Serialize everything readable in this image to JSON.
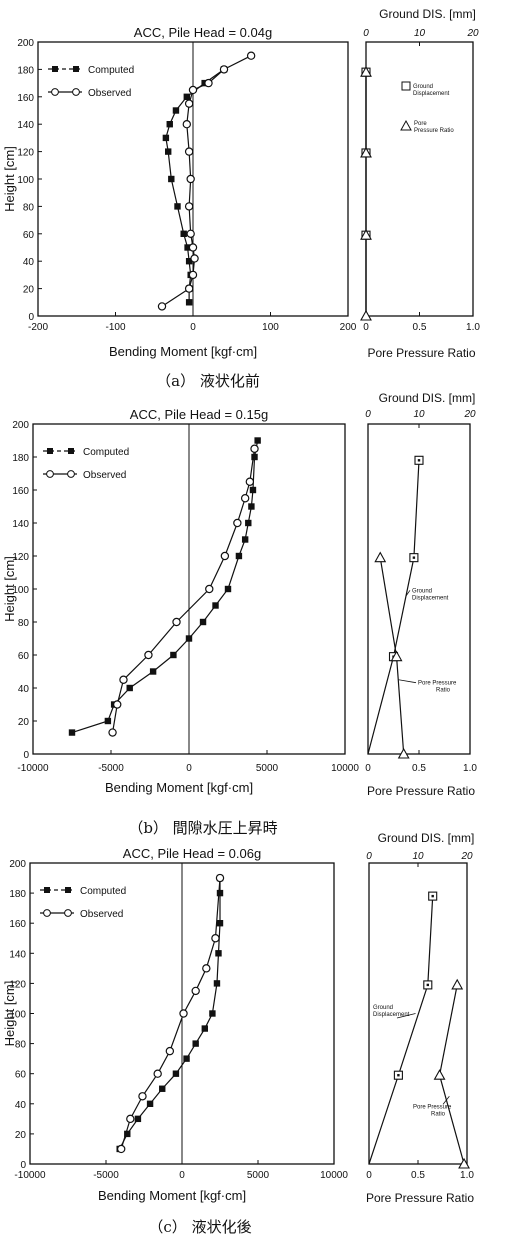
{
  "chart_data": [
    {
      "type": "line",
      "title": "ACC, Pile Head = 0.04g",
      "caption": "（a） 液状化前",
      "xlabel": "Bending Moment [kgf·cm]",
      "ylabel": "Height [cm]",
      "xlim": [
        -200,
        200
      ],
      "ylim": [
        0,
        200
      ],
      "xticks": [
        "-200",
        "-100",
        "0",
        "100",
        "200"
      ],
      "yticks": [
        "0",
        "20",
        "40",
        "60",
        "80",
        "100",
        "120",
        "140",
        "160",
        "180",
        "200"
      ],
      "legend": {
        "position": "top-left",
        "computed": "Computed",
        "observed": "Observed"
      },
      "series": [
        {
          "name": "Computed",
          "marker": "filled-square",
          "x": [
            -5,
            -5,
            -3,
            -5,
            -7,
            -12,
            -20,
            -28,
            -32,
            -35,
            -30,
            -22,
            -8,
            15,
            40
          ],
          "y": [
            10,
            20,
            30,
            40,
            50,
            60,
            80,
            100,
            120,
            130,
            140,
            150,
            160,
            170,
            180
          ]
        },
        {
          "name": "Observed",
          "marker": "open-circle",
          "x": [
            -40,
            -5,
            0,
            2,
            0,
            -3,
            -5,
            -3,
            -5,
            -8,
            -5,
            0,
            20,
            40,
            75
          ],
          "y": [
            7,
            20,
            30,
            42,
            50,
            60,
            80,
            100,
            120,
            140,
            155,
            165,
            170,
            180,
            190
          ]
        }
      ],
      "side_panel": {
        "top_label": "Ground DIS. [mm]",
        "bottom_label": "Pore Pressure Ratio",
        "top_ticks": [
          "0",
          "10",
          "20"
        ],
        "top_lim": [
          0,
          20
        ],
        "bottom_ticks": [
          "0",
          "0.5",
          "1.0"
        ],
        "bottom_lim": [
          0,
          1
        ],
        "label_ground": [
          "Ground",
          "Displacement"
        ],
        "label_pore": [
          "Pore",
          "Pressure Ratio"
        ],
        "ground_displacement": {
          "x": [
            0,
            0,
            0,
            0
          ],
          "y": [
            178,
            119,
            59,
            0
          ]
        },
        "pore_pressure": {
          "x": [
            0,
            0,
            0,
            0
          ],
          "y": [
            178,
            119,
            59,
            0
          ]
        }
      }
    },
    {
      "type": "line",
      "title": "ACC, Pile Head = 0.15g",
      "caption": "（b） 間隙水圧上昇時",
      "xlabel": "Bending Moment [kgf·cm]",
      "ylabel": "Height [cm]",
      "xlim": [
        -10000,
        10000
      ],
      "ylim": [
        0,
        200
      ],
      "xticks": [
        "-10000",
        "-5000",
        "0",
        "5000",
        "10000"
      ],
      "yticks": [
        "0",
        "20",
        "40",
        "60",
        "80",
        "100",
        "120",
        "140",
        "160",
        "180",
        "200"
      ],
      "legend": {
        "position": "top-left",
        "computed": "Computed",
        "observed": "Observed"
      },
      "series": [
        {
          "name": "Computed",
          "marker": "filled-square",
          "x": [
            -7500,
            -5200,
            -4800,
            -3800,
            -2300,
            -1000,
            0,
            900,
            1700,
            2500,
            3200,
            3600,
            3800,
            4000,
            4100,
            4200,
            4400
          ],
          "y": [
            13,
            20,
            30,
            40,
            50,
            60,
            70,
            80,
            90,
            100,
            120,
            130,
            140,
            150,
            160,
            180,
            190
          ]
        },
        {
          "name": "Observed",
          "marker": "open-circle",
          "x": [
            -4900,
            -4600,
            -4200,
            -2600,
            -800,
            1300,
            2300,
            3100,
            3600,
            3900,
            4200
          ],
          "y": [
            13,
            30,
            45,
            60,
            80,
            100,
            120,
            140,
            155,
            165,
            185
          ]
        }
      ],
      "side_panel": {
        "top_label": "Ground DIS. [mm]",
        "bottom_label": "Pore Pressure Ratio",
        "top_ticks": [
          "0",
          "10",
          "20"
        ],
        "top_lim": [
          0,
          20
        ],
        "bottom_ticks": [
          "0",
          "0.5",
          "1.0"
        ],
        "bottom_lim": [
          0,
          1
        ],
        "label_ground": [
          "Ground",
          "Displacement"
        ],
        "label_pore": [
          "Pore Pressure",
          "Ratio"
        ],
        "ground_displacement": {
          "x": [
            10,
            9,
            5,
            0
          ],
          "y": [
            178,
            119,
            59,
            0
          ]
        },
        "pore_pressure": {
          "x": [
            0.12,
            0.28,
            0.35
          ],
          "y": [
            119,
            59,
            0
          ]
        }
      }
    },
    {
      "type": "line",
      "title": "ACC, Pile Head = 0.06g",
      "caption": "（c） 液状化後",
      "xlabel": "Bending Moment [kgf·cm]",
      "ylabel": "Height [cm]",
      "xlim": [
        -10000,
        10000
      ],
      "ylim": [
        0,
        200
      ],
      "xticks": [
        "-10000",
        "-5000",
        "0",
        "5000",
        "10000"
      ],
      "yticks": [
        "0",
        "20",
        "40",
        "60",
        "80",
        "100",
        "120",
        "140",
        "160",
        "180",
        "200"
      ],
      "legend": {
        "position": "top-left",
        "computed": "Computed",
        "observed": "Observed"
      },
      "series": [
        {
          "name": "Computed",
          "marker": "filled-square",
          "x": [
            -4100,
            -3600,
            -2900,
            -2100,
            -1300,
            -400,
            300,
            900,
            1500,
            2000,
            2300,
            2400,
            2500,
            2500,
            2500
          ],
          "y": [
            10,
            20,
            30,
            40,
            50,
            60,
            70,
            80,
            90,
            100,
            120,
            140,
            160,
            180,
            190
          ]
        },
        {
          "name": "Observed",
          "marker": "open-circle",
          "x": [
            -4000,
            -3400,
            -2600,
            -1600,
            -800,
            100,
            900,
            1600,
            2200,
            2500
          ],
          "y": [
            10,
            30,
            45,
            60,
            75,
            100,
            115,
            130,
            150,
            190
          ]
        }
      ],
      "side_panel": {
        "top_label": "Ground DIS. [mm]",
        "bottom_label": "Pore Pressure Ratio",
        "top_ticks": [
          "0",
          "10",
          "20"
        ],
        "top_lim": [
          0,
          20
        ],
        "bottom_ticks": [
          "0",
          "0.5",
          "1.0"
        ],
        "bottom_lim": [
          0,
          1
        ],
        "label_ground": [
          "Ground",
          "Displacement"
        ],
        "label_pore": [
          "Pore Pressure",
          "Ratio"
        ],
        "ground_displacement": {
          "x": [
            13,
            12,
            6,
            0
          ],
          "y": [
            178,
            119,
            59,
            0
          ]
        },
        "pore_pressure": {
          "x": [
            0.9,
            0.72,
            0.97
          ],
          "y": [
            119,
            59,
            0
          ]
        }
      }
    }
  ]
}
